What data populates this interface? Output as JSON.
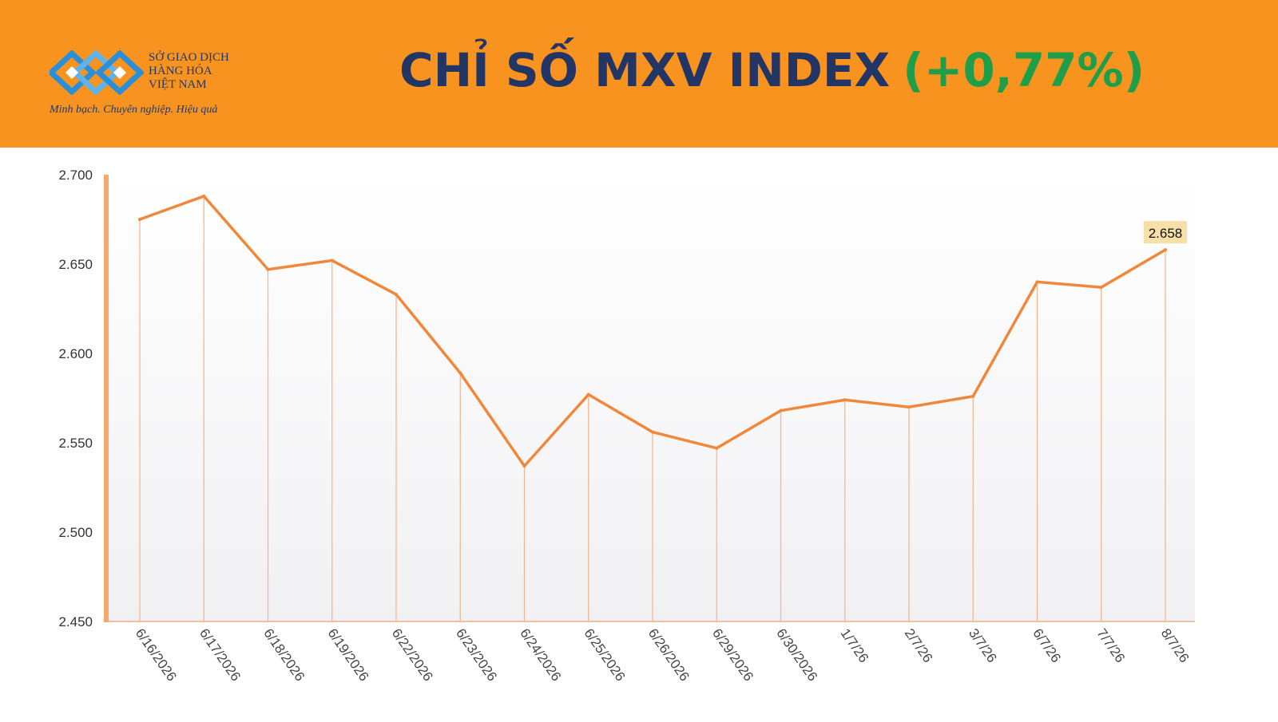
{
  "header": {
    "logo": {
      "line1": "SỞ GIAO DỊCH",
      "line2": "HÀNG HÓA",
      "line3": "VIỆT NAM",
      "slogan": "Minh bạch. Chuyên nghiệp. Hiệu quả"
    },
    "title": "CHỈ SỐ MXV INDEX",
    "change": "(+0,77%)"
  },
  "colors": {
    "header_bg": "#F7931E",
    "title": "#233565",
    "change": "#1f9e4a",
    "line": "#F0883C",
    "label_bg": "#F7DFA8"
  },
  "chart_data": {
    "type": "area",
    "categories": [
      "6/16/2026",
      "6/17/2026",
      "6/18/2026",
      "6/19/2026",
      "6/22/2026",
      "6/23/2026",
      "6/24/2026",
      "6/25/2026",
      "6/26/2026",
      "6/29/2026",
      "6/30/2026",
      "1/7/26",
      "2/7/26",
      "3/7/26",
      "6/7/26",
      "7/7/26",
      "8/7/26"
    ],
    "series": [
      {
        "values": [
          2675,
          2688,
          2647,
          2652,
          2633,
          2589,
          2537,
          2577,
          2556,
          2547,
          2568,
          2574,
          2570,
          2576,
          2640,
          2637,
          2658
        ]
      }
    ],
    "ylim": [
      2450,
      2700
    ],
    "yticks": [
      2450,
      2500,
      2550,
      2600,
      2650,
      2700
    ],
    "ytick_labels": [
      "2.450",
      "2.500",
      "2.550",
      "2.600",
      "2.650",
      "2.700"
    ],
    "last_value_label": "2.658",
    "grid": false,
    "legend": "none"
  }
}
